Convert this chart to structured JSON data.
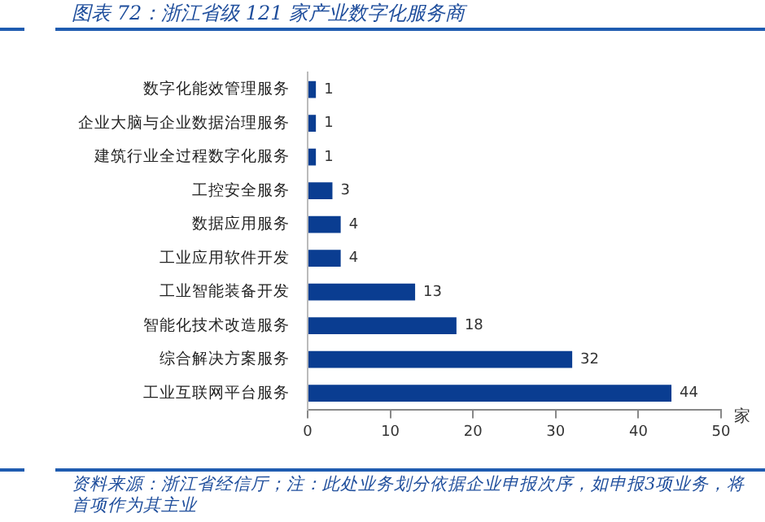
{
  "chart_data": {
    "type": "bar",
    "orientation": "horizontal",
    "title": "图表 72：浙江省级 121 家产业数字化服务商",
    "xlabel": "家",
    "categories": [
      "数字化能效管理服务",
      "企业大脑与企业数据治理服务",
      "建筑行业全过程数字化服务",
      "工控安全服务",
      "数据应用服务",
      "工业应用软件开发",
      "工业智能装备开发",
      "智能化技术改造服务",
      "综合解决方案服务",
      "工业互联网平台服务"
    ],
    "values": [
      1,
      1,
      1,
      3,
      4,
      4,
      13,
      18,
      32,
      44
    ],
    "color": "#0a3d91",
    "xlim": [
      0,
      50
    ],
    "xticks": [
      0,
      10,
      20,
      30,
      40,
      50
    ],
    "grid": false,
    "legend": false,
    "data_labels": true,
    "annotations": [
      "资料来源：浙江省经信厅；注：此处业务划分依据企业申报次序，如申报3项业务，将首项作为其主业"
    ]
  }
}
